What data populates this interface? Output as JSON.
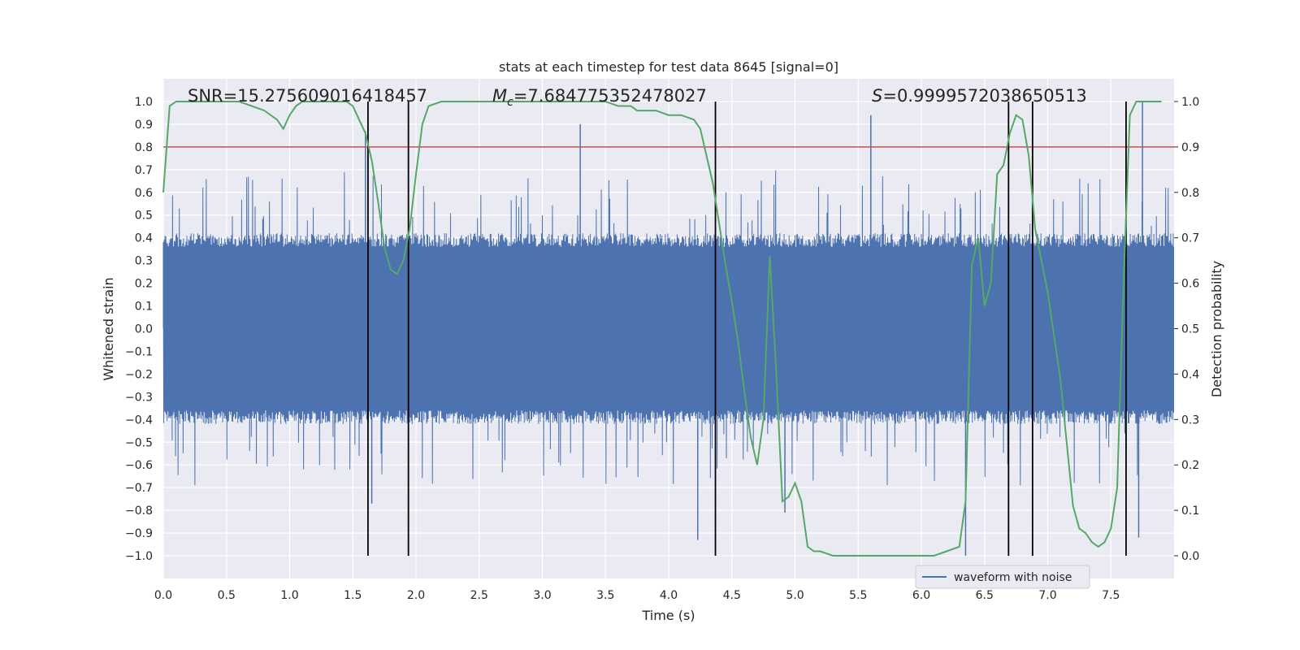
{
  "chart_data": {
    "type": "line",
    "title": "stats at each timestep for test data 8645 [signal=0]",
    "xlabel": "Time (s)",
    "ylabel_left": "Whitened strain",
    "ylabel_right": "Detection probability",
    "xlim": [
      0.0,
      8.0
    ],
    "ylim_left": [
      -1.1,
      1.1
    ],
    "ylim_right": [
      -0.05,
      1.05
    ],
    "x_ticks": [
      "0.0",
      "0.5",
      "1.0",
      "1.5",
      "2.0",
      "2.5",
      "3.0",
      "3.5",
      "4.0",
      "4.5",
      "5.0",
      "5.5",
      "6.0",
      "6.5",
      "7.0",
      "7.5"
    ],
    "y_ticks_left": [
      "1.0",
      "0.9",
      "0.8",
      "0.7",
      "0.6",
      "0.5",
      "0.4",
      "0.3",
      "0.2",
      "0.1",
      "0.0",
      "−0.1",
      "−0.2",
      "−0.3",
      "−0.4",
      "−0.5",
      "−0.6",
      "−0.7",
      "−0.8",
      "−0.9",
      "−1.0"
    ],
    "y_ticks_right": [
      "1.0",
      "0.9",
      "0.8",
      "0.7",
      "0.6",
      "0.5",
      "0.4",
      "0.3",
      "0.2",
      "0.1",
      "0.0"
    ],
    "annotations": {
      "snr": "SNR=15.275609016418457",
      "mc_symbol": "M",
      "mc_sub": "c",
      "mc_value": "=7.684775352478027",
      "s_symbol": "S",
      "s_value": "=0.9999572038650513"
    },
    "threshold": {
      "value": 0.8,
      "axis": "left",
      "color": "#c44e52"
    },
    "vertical_lines": [
      1.62,
      1.94,
      4.37,
      6.69,
      6.88,
      7.62
    ],
    "series": [
      {
        "name": "waveform with noise",
        "color": "#4c72b0",
        "kind": "noise",
        "description_envelope": 0.4,
        "spikes": [
          {
            "x": 1.6,
            "y": 0.87
          },
          {
            "x": 3.3,
            "y": 0.9
          },
          {
            "x": 5.6,
            "y": 0.94
          },
          {
            "x": 7.75,
            "y": 1.0
          },
          {
            "x": 1.65,
            "y": -0.77
          },
          {
            "x": 4.23,
            "y": -0.93
          },
          {
            "x": 6.35,
            "y": -1.0
          },
          {
            "x": 7.72,
            "y": -0.92
          },
          {
            "x": 4.92,
            "y": -0.81
          }
        ]
      },
      {
        "name": "detection probability",
        "color": "#55a868",
        "axis": "right",
        "x": [
          0.0,
          0.05,
          0.1,
          0.2,
          0.3,
          0.4,
          0.5,
          0.6,
          0.7,
          0.8,
          0.9,
          0.95,
          1.0,
          1.05,
          1.1,
          1.2,
          1.3,
          1.4,
          1.45,
          1.5,
          1.55,
          1.6,
          1.65,
          1.7,
          1.75,
          1.8,
          1.85,
          1.9,
          1.95,
          2.0,
          2.05,
          2.1,
          2.2,
          2.3,
          2.5,
          3.0,
          3.5,
          3.6,
          3.7,
          3.75,
          3.8,
          3.9,
          4.0,
          4.1,
          4.2,
          4.25,
          4.3,
          4.35,
          4.4,
          4.45,
          4.5,
          4.55,
          4.6,
          4.65,
          4.7,
          4.75,
          4.8,
          4.85,
          4.9,
          4.95,
          5.0,
          5.05,
          5.1,
          5.15,
          5.2,
          5.3,
          5.4,
          5.5,
          5.6,
          5.7,
          5.8,
          5.9,
          6.0,
          6.05,
          6.1,
          6.2,
          6.3,
          6.35,
          6.4,
          6.45,
          6.5,
          6.55,
          6.6,
          6.65,
          6.7,
          6.75,
          6.8,
          6.85,
          6.9,
          7.0,
          7.1,
          7.2,
          7.25,
          7.3,
          7.35,
          7.4,
          7.45,
          7.5,
          7.55,
          7.6,
          7.65,
          7.7,
          7.75,
          7.8,
          7.85,
          7.9
        ],
        "values": [
          0.8,
          0.99,
          1.0,
          1.0,
          1.0,
          1.0,
          1.0,
          1.0,
          0.99,
          0.98,
          0.96,
          0.94,
          0.97,
          0.99,
          1.0,
          1.0,
          1.0,
          1.0,
          1.0,
          0.99,
          0.96,
          0.93,
          0.87,
          0.78,
          0.68,
          0.63,
          0.62,
          0.65,
          0.72,
          0.84,
          0.95,
          0.99,
          1.0,
          1.0,
          1.0,
          1.0,
          1.0,
          0.99,
          0.99,
          0.98,
          0.98,
          0.98,
          0.97,
          0.97,
          0.96,
          0.94,
          0.88,
          0.82,
          0.73,
          0.64,
          0.56,
          0.47,
          0.36,
          0.26,
          0.2,
          0.3,
          0.66,
          0.41,
          0.12,
          0.13,
          0.16,
          0.12,
          0.02,
          0.01,
          0.01,
          0.0,
          0.0,
          0.0,
          0.0,
          0.0,
          0.0,
          0.0,
          0.0,
          0.0,
          0.0,
          0.01,
          0.02,
          0.12,
          0.64,
          0.7,
          0.55,
          0.6,
          0.84,
          0.86,
          0.93,
          0.97,
          0.96,
          0.88,
          0.72,
          0.58,
          0.39,
          0.11,
          0.06,
          0.05,
          0.03,
          0.02,
          0.03,
          0.06,
          0.15,
          0.6,
          0.97,
          1.0,
          1.0,
          1.0,
          1.0,
          1.0
        ]
      }
    ],
    "legend": {
      "label": "waveform with noise",
      "position": "lower-right"
    }
  }
}
